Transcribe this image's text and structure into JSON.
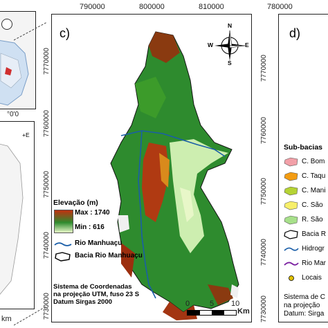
{
  "left_fragment": {
    "coord_label": "°0'0",
    "side_text": "+E",
    "scale_unit": "km"
  },
  "panel_c": {
    "label": "c)",
    "x_ticks": [
      "790000",
      "800000",
      "810000"
    ],
    "y_ticks": [
      "7770000",
      "7760000",
      "7750000",
      "7740000",
      "7730000"
    ],
    "compass": {
      "n": "N",
      "s": "S",
      "e": "E",
      "w": "W"
    },
    "legend": {
      "elevation_title": "Elevação (m)",
      "max_label": "Max : 1740",
      "min_label": "Min : 616",
      "river_label": "Rio Manhuaçu",
      "basin_label": "Bacia Rio Manhuaçu"
    },
    "crs": {
      "line1": "Sistema de Coordenadas",
      "line2": "na projeção UTM, fuso 23 S",
      "line3": "Datum Sirgas 2000"
    },
    "scale": {
      "ticks": [
        "0",
        "5",
        "10"
      ],
      "unit": "Km"
    },
    "colors": {
      "high": "#c03010",
      "mid": "#2e8b2e",
      "low": "#e8f7c8",
      "river": "#1a5ea8"
    }
  },
  "panel_d": {
    "label": "d)",
    "x_ticks": [
      "780000"
    ],
    "y_ticks": [
      "7770000",
      "7760000",
      "7750000",
      "7740000",
      "7730000"
    ],
    "legend": {
      "title": "Sub-bacias",
      "items": [
        {
          "label": "C. Bom",
          "color": "#f2a0a8"
        },
        {
          "label": "C. Taqu",
          "color": "#f39c12"
        },
        {
          "label": "C. Mani",
          "color": "#b5d334"
        },
        {
          "label": "C. São",
          "color": "#f7ef6a"
        },
        {
          "label": "R. São",
          "color": "#a7e08a"
        },
        {
          "label": "Bacia R",
          "color": "#ffffff"
        },
        {
          "label": "Hidrogr",
          "color": "#1a5ea8"
        },
        {
          "label": "Rio Mar",
          "color": "#7a1fa0"
        },
        {
          "label": "Locais",
          "color": "#e0c000"
        }
      ]
    },
    "crs": {
      "line1": "Sistema de C",
      "line2": "na projeção",
      "line3": "Datum: Sirga"
    }
  }
}
